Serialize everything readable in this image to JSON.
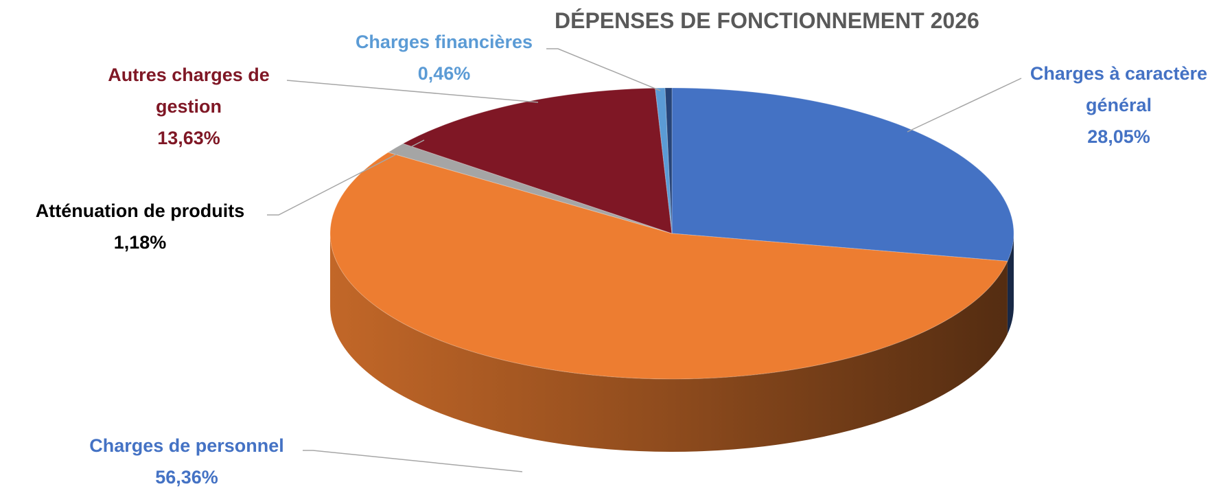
{
  "chart_data": {
    "type": "pie",
    "title": "DÉPENSES DE FONCTIONNEMENT 2026",
    "categories": [
      "Charges à caractère général",
      "Charges de personnel",
      "Atténuation de produits",
      "Autres charges de gestion",
      "Charges financières",
      null
    ],
    "values": [
      28.05,
      56.36,
      1.18,
      13.63,
      0.46,
      0.32
    ],
    "value_labels": [
      "28,05%",
      "56,36%",
      "1,18%",
      "13,63%",
      "0,46%",
      null
    ],
    "colors": [
      "#4472c4",
      "#ed7d31",
      "#a5a5a5",
      "#7f1725",
      "#5b9bd5",
      "#264478"
    ]
  }
}
